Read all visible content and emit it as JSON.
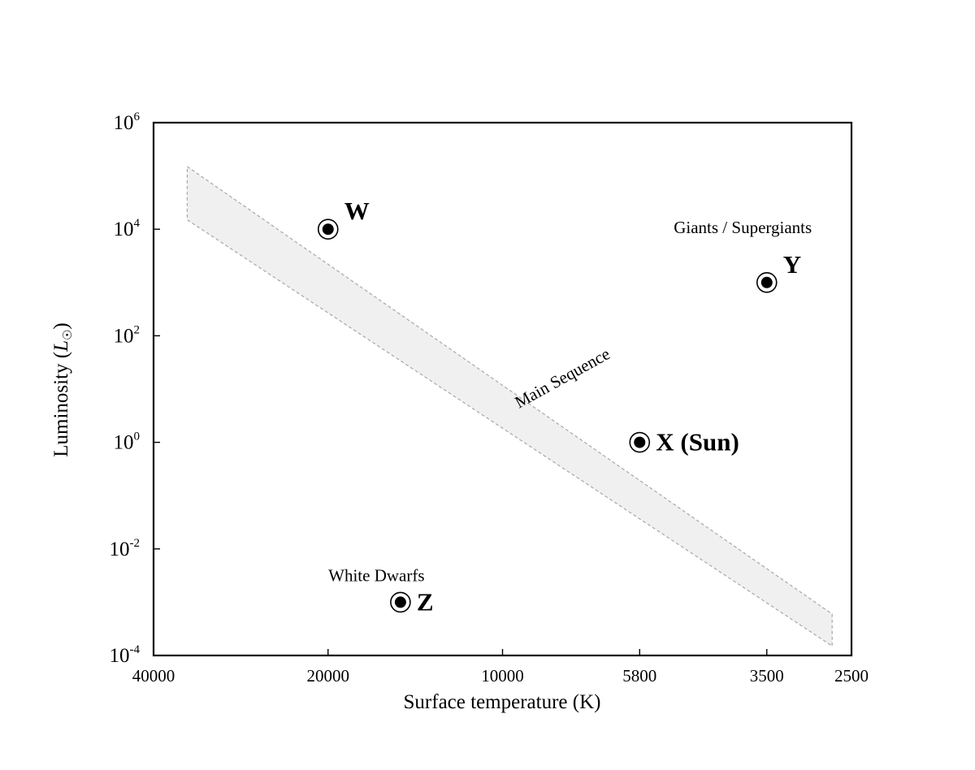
{
  "chart_data": {
    "type": "scatter",
    "title": "",
    "xlabel": "Surface temperature (K)",
    "ylabel_prefix": "Luminosity (",
    "ylabel_symbol": "L",
    "ylabel_suffix": ")",
    "x_scale": "log",
    "x_reversed": true,
    "y_scale": "log",
    "xlim": [
      40000,
      2500
    ],
    "ylim": [
      0.0001,
      1000000
    ],
    "x_ticks": [
      {
        "value": 40000,
        "label": "40000"
      },
      {
        "value": 20000,
        "label": "20000"
      },
      {
        "value": 10000,
        "label": "10000"
      },
      {
        "value": 5800,
        "label": "5800"
      },
      {
        "value": 3500,
        "label": "3500"
      },
      {
        "value": 2500,
        "label": "2500"
      }
    ],
    "y_ticks": [
      {
        "value": 1000000,
        "base": "10",
        "exp": "6"
      },
      {
        "value": 10000,
        "base": "10",
        "exp": "4"
      },
      {
        "value": 100,
        "base": "10",
        "exp": "2"
      },
      {
        "value": 1,
        "base": "10",
        "exp": "0"
      },
      {
        "value": 0.01,
        "base": "10",
        "exp": "-2"
      },
      {
        "value": 0.0001,
        "base": "10",
        "exp": "-4"
      }
    ],
    "grid": false,
    "points": [
      {
        "label": "W",
        "x": 20000,
        "y": 10000,
        "label_pos": "upper-right"
      },
      {
        "label": "Y",
        "x": 3500,
        "y": 1000,
        "label_pos": "upper-right"
      },
      {
        "label": "X (Sun)",
        "x": 5800,
        "y": 1,
        "label_pos": "right"
      },
      {
        "label": "Z",
        "x": 15000,
        "y": 0.001,
        "label_pos": "right"
      }
    ],
    "main_sequence_band": {
      "upper_edge": [
        [
          35000,
          150000
        ],
        [
          2700,
          0.0006
        ]
      ],
      "lower_edge": [
        [
          35000,
          15000
        ],
        [
          2700,
          0.00015
        ]
      ]
    },
    "annotations": [
      {
        "name": "main-sequence-label",
        "text": "Main Sequence",
        "x": 7800,
        "y": 13,
        "rotate": -29
      },
      {
        "name": "giants-label",
        "text": "Giants / Supergiants",
        "x": 3850,
        "y": 8500,
        "rotate": 0
      },
      {
        "name": "white-dwarfs-label",
        "text": "White Dwarfs",
        "x": 16500,
        "y": 0.0025,
        "rotate": 0
      }
    ]
  }
}
